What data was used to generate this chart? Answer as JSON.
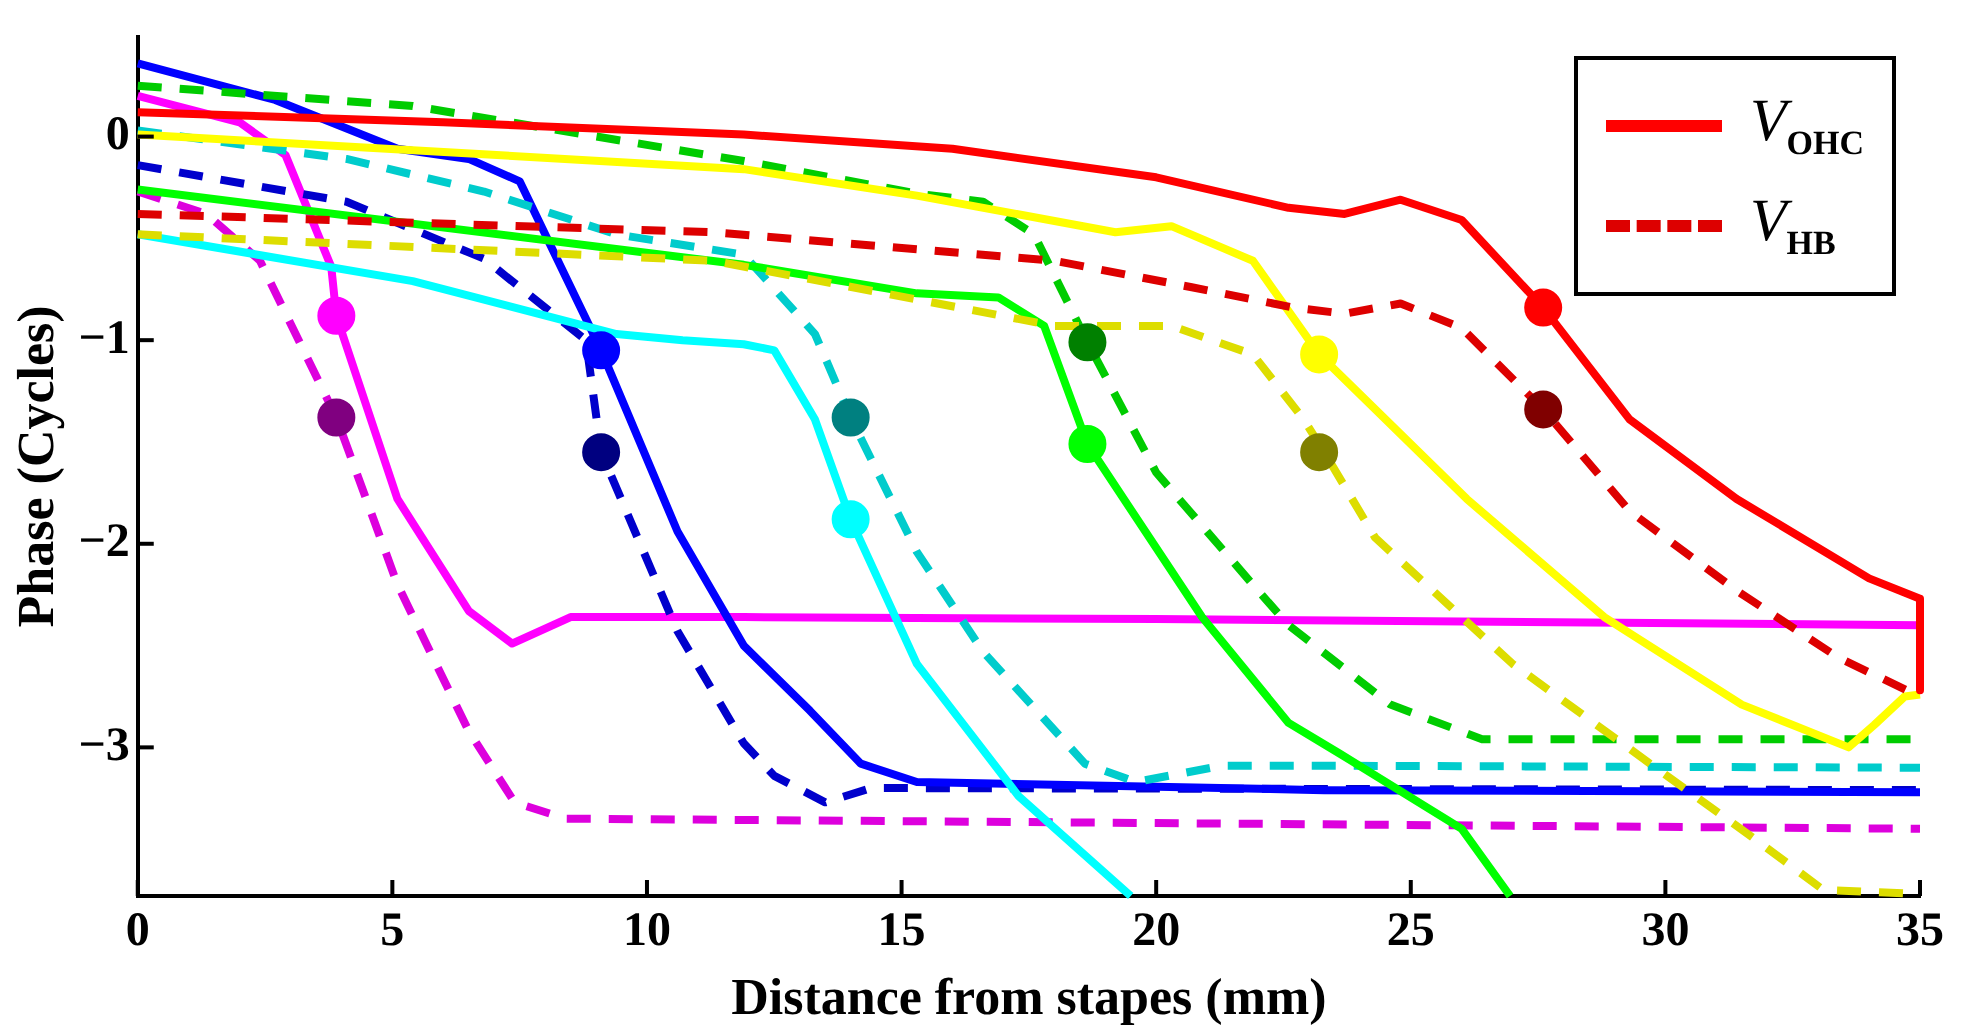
{
  "chart_data": {
    "type": "line",
    "xlabel": "Distance from stapes (mm)",
    "ylabel": "Phase (Cycles)",
    "xlim": [
      0,
      35
    ],
    "xticks": [
      0,
      5,
      10,
      15,
      20,
      25,
      30,
      35
    ],
    "ylim": [
      -3.73,
      0.49
    ],
    "yticks": [
      0,
      {
        "value": -1,
        "label": "−1"
      },
      {
        "value": -2,
        "label": "−2"
      },
      {
        "value": -3,
        "label": "−3"
      }
    ],
    "legend": "top right",
    "series": [
      {
        "name": "V$_{OHC}$",
        "color": "#ff0000",
        "line_style": "solid",
        "x": [
          0,
          6,
          11.9,
          16,
          20,
          22.6,
          23.7,
          24.8,
          26,
          27.6,
          29.3,
          31.4,
          34,
          35,
          35
        ],
        "values": [
          0.12,
          0.07,
          0.01,
          -0.06,
          -0.2,
          -0.35,
          -0.38,
          -0.31,
          -0.41,
          -0.84,
          -1.39,
          -1.78,
          -2.17,
          -2.27,
          -2.72
        ]
      },
      {
        "name": "V$_{HB}$",
        "color": "#dd0000",
        "line_style": "dashed",
        "x": [
          0,
          11.3,
          18,
          20.7,
          22.7,
          23.7,
          24.8,
          26,
          27.6,
          29.3,
          31.4,
          33.4,
          35
        ],
        "values": [
          -0.38,
          -0.47,
          -0.61,
          -0.74,
          -0.84,
          -0.87,
          -0.82,
          -0.94,
          -1.34,
          -1.84,
          -2.23,
          -2.56,
          -2.75
        ]
      },
      {
        "color": "#ffff00",
        "line_style": "solid",
        "x": [
          0,
          11.9,
          15.3,
          19.2,
          20.3,
          21.9,
          23.2,
          26.1,
          28.8,
          31.5,
          33.6,
          34.1,
          34.7,
          35
        ],
        "values": [
          0.01,
          -0.16,
          -0.29,
          -0.47,
          -0.44,
          -0.61,
          -1.07,
          -1.78,
          -2.36,
          -2.79,
          -3.0,
          -2.89,
          -2.75,
          -2.74
        ]
      },
      {
        "color": "#dddd00",
        "line_style": "dashed",
        "x": [
          0,
          11.3,
          15.3,
          18,
          20.3,
          21.9,
          22.9,
          23.3,
          24.3,
          27,
          29.7,
          31.7,
          33.1,
          35
        ],
        "values": [
          -0.48,
          -0.61,
          -0.8,
          -0.93,
          -0.93,
          -1.07,
          -1.39,
          -1.55,
          -1.97,
          -2.59,
          -3.08,
          -3.44,
          -3.7,
          -3.72
        ]
      },
      {
        "color": "#00ff00",
        "line_style": "solid",
        "x": [
          0,
          11.9,
          15.3,
          16.9,
          17.8,
          18.65,
          20.9,
          22.6,
          23.6,
          26,
          26.95
        ],
        "values": [
          -0.26,
          -0.63,
          -0.77,
          -0.79,
          -0.93,
          -1.51,
          -2.36,
          -2.88,
          -3.03,
          -3.4,
          -3.73
        ]
      },
      {
        "color": "#00cc00",
        "line_style": "dashed",
        "x": [
          0,
          5.4,
          11.9,
          15.3,
          16.6,
          17.6,
          18.65,
          20,
          22,
          22.6,
          24.6,
          26.4,
          35
        ],
        "values": [
          0.25,
          0.15,
          -0.12,
          -0.28,
          -0.32,
          -0.48,
          -1.01,
          -1.65,
          -2.23,
          -2.4,
          -2.79,
          -2.96,
          -2.96
        ]
      },
      {
        "color": "#00ffff",
        "line_style": "solid",
        "x": [
          0,
          5.4,
          9.4,
          10.7,
          11.9,
          12.5,
          13.3,
          14,
          15.3,
          17.3,
          19.5
        ],
        "values": [
          -0.48,
          -0.71,
          -0.97,
          -1.0,
          -1.02,
          -1.05,
          -1.39,
          -1.88,
          -2.59,
          -3.24,
          -3.73
        ]
      },
      {
        "color": "#00cccc",
        "line_style": "dashed",
        "x": [
          0,
          4.1,
          6.8,
          9.4,
          11.9,
          13.3,
          14,
          15.3,
          16.6,
          18.6,
          19.6,
          21.3,
          23.3,
          35
        ],
        "values": [
          0.03,
          -0.11,
          -0.27,
          -0.48,
          -0.58,
          -0.97,
          -1.38,
          -2.04,
          -2.53,
          -3.08,
          -3.17,
          -3.09,
          -3.09,
          -3.1
        ]
      },
      {
        "color": "#0000ff",
        "line_style": "solid",
        "x": [
          0,
          2.7,
          5.1,
          6.5,
          7.5,
          9.1,
          10.6,
          11.9,
          13.2,
          14.2,
          15.3,
          23.3,
          35
        ],
        "values": [
          0.36,
          0.18,
          -0.06,
          -0.11,
          -0.22,
          -1.05,
          -1.94,
          -2.5,
          -2.82,
          -3.08,
          -3.17,
          -3.21,
          -3.22
        ]
      },
      {
        "color": "#0000cc",
        "line_style": "dashed",
        "x": [
          0,
          4.1,
          6.8,
          8.8,
          9.1,
          10.6,
          11.9,
          12.5,
          13.5,
          14.4,
          15,
          35
        ],
        "values": [
          -0.14,
          -0.32,
          -0.6,
          -1.0,
          -1.55,
          -2.43,
          -2.98,
          -3.14,
          -3.27,
          -3.2,
          -3.2,
          -3.21
        ]
      },
      {
        "color": "#ff00ff",
        "line_style": "solid",
        "x": [
          0,
          2.0,
          2.9,
          3.8,
          3.9,
          5.1,
          6.5,
          7.35,
          8.5,
          11.9,
          20,
          35
        ],
        "values": [
          0.2,
          0.07,
          -0.09,
          -0.64,
          -0.88,
          -1.78,
          -2.33,
          -2.49,
          -2.36,
          -2.36,
          -2.37,
          -2.4
        ]
      },
      {
        "color": "#dd00dd",
        "line_style": "dashed",
        "x": [
          0,
          1.35,
          2.4,
          3.9,
          5.1,
          6.5,
          7.4,
          8.4,
          35
        ],
        "values": [
          -0.27,
          -0.38,
          -0.61,
          -1.38,
          -2.2,
          -2.92,
          -3.27,
          -3.35,
          -3.4
        ]
      },
      {
        "type": "scatter",
        "marker": "circle",
        "x": [
          3.9,
          3.9,
          9.1,
          9.1,
          14,
          14,
          18.65,
          18.65,
          23.2,
          23.2,
          27.6,
          27.6
        ],
        "values": [
          -0.88,
          -1.38,
          -1.05,
          -1.55,
          -1.88,
          -1.38,
          -1.51,
          -1.01,
          -1.07,
          -1.55,
          -0.84,
          -1.34
        ],
        "colors": [
          "#ff00ff",
          "#800080",
          "#0000ff",
          "#000080",
          "#00ffff",
          "#008080",
          "#00ff00",
          "#008000",
          "#ffff00",
          "#808000",
          "#ff0000",
          "#800000"
        ]
      }
    ]
  }
}
